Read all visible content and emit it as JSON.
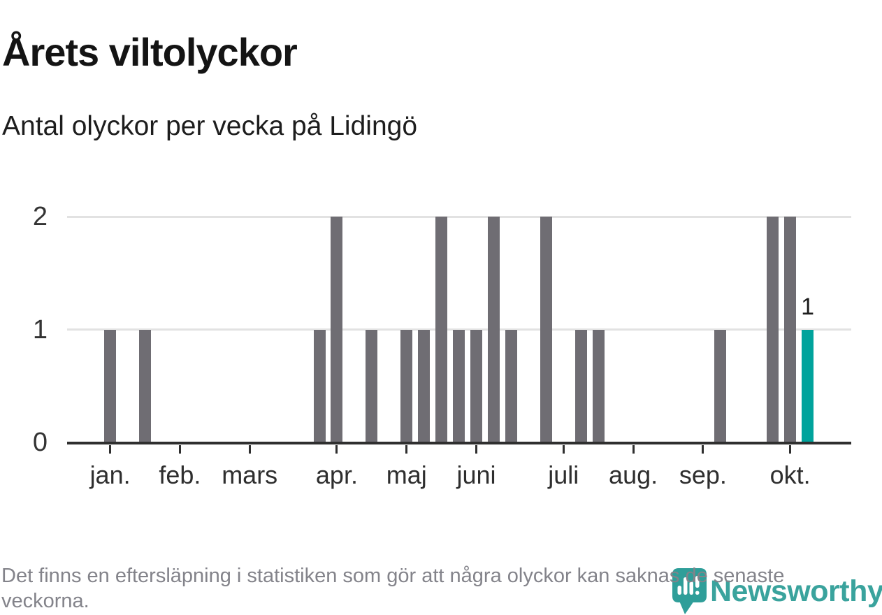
{
  "chart_data": {
    "type": "bar",
    "title": "Årets viltolyckor",
    "subtitle": "Antal olyckor per vecka på Lidingö",
    "x_unit": "week",
    "ylim": [
      0,
      2
    ],
    "yticks": [
      0,
      1,
      2
    ],
    "grid": "horizontal",
    "values_by_week": [
      1,
      0,
      1,
      0,
      0,
      0,
      0,
      0,
      0,
      0,
      0,
      0,
      1,
      2,
      0,
      1,
      0,
      1,
      1,
      2,
      1,
      1,
      2,
      1,
      0,
      2,
      0,
      1,
      1,
      0,
      0,
      0,
      0,
      0,
      0,
      1,
      0,
      0,
      2,
      2,
      1
    ],
    "month_ticks": [
      {
        "label": "jan.",
        "week": 0
      },
      {
        "label": "feb.",
        "week": 4
      },
      {
        "label": "mars",
        "week": 8
      },
      {
        "label": "apr.",
        "week": 13
      },
      {
        "label": "maj",
        "week": 17
      },
      {
        "label": "juni",
        "week": 21
      },
      {
        "label": "juli",
        "week": 26
      },
      {
        "label": "aug.",
        "week": 30
      },
      {
        "label": "sep.",
        "week": 34
      },
      {
        "label": "okt.",
        "week": 39
      }
    ],
    "latest": {
      "week": 40,
      "value": 1,
      "label": "1",
      "highlighted": true
    },
    "colors": {
      "bar": "#6f6d73",
      "highlight": "#00a39c",
      "grid": "#e2e2e2",
      "axis": "#2f2f2f"
    }
  },
  "footer": {
    "note": "Det finns en eftersläpning i statistiken som gör att några olyckor kan saknas de senaste veckorna."
  },
  "logo": {
    "text": "Newsworthy",
    "icon": "newsworthy-pin-barchart-icon",
    "text_color": "#3aa39d",
    "icon_color": "#2f9e99"
  }
}
